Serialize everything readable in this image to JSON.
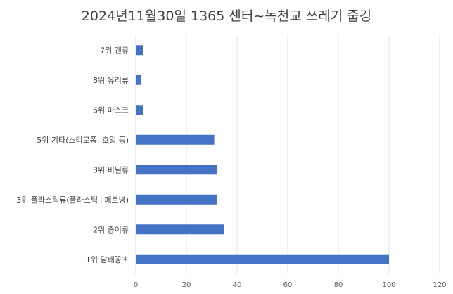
{
  "chart_data": {
    "type": "bar",
    "orientation": "horizontal",
    "title": "2024년11월30일 1365 센터~녹천교 쓰레기 줍깅",
    "categories": [
      "7위 캔류",
      "8위 유리류",
      "6위 마스크",
      "5위 기타(스티로폼, 호일 등)",
      "3위 비닐류",
      "3위 플라스틱류(플라스틱+페트병)",
      "2위 종이류",
      "1위 담배꽁초"
    ],
    "values": [
      3,
      2,
      3,
      31,
      32,
      32,
      35,
      100
    ],
    "xlim": [
      0,
      120
    ],
    "xticks": [
      "0",
      "20",
      "40",
      "60",
      "80",
      "100",
      "120"
    ],
    "grid": true,
    "legend": "none",
    "bar_color": "#4472C4"
  }
}
